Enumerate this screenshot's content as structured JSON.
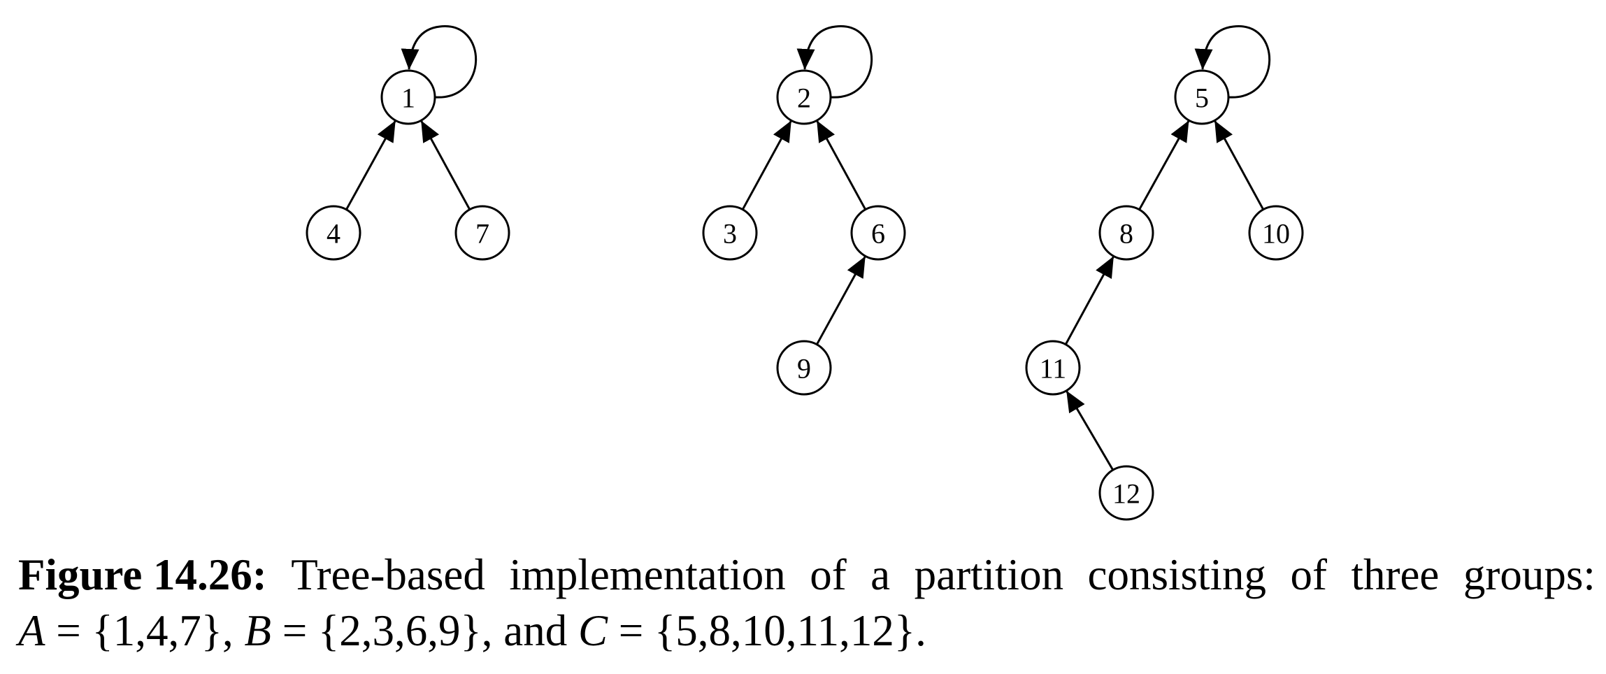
{
  "colors": {
    "stroke": "#000000",
    "text": "#000000",
    "background": "#ffffff"
  },
  "nodes": [
    {
      "id": "n1",
      "label": "1"
    },
    {
      "id": "n4",
      "label": "4"
    },
    {
      "id": "n7",
      "label": "7"
    },
    {
      "id": "n2",
      "label": "2"
    },
    {
      "id": "n3",
      "label": "3"
    },
    {
      "id": "n6",
      "label": "6"
    },
    {
      "id": "n9",
      "label": "9"
    },
    {
      "id": "n5",
      "label": "5"
    },
    {
      "id": "n8",
      "label": "8"
    },
    {
      "id": "n10",
      "label": "10"
    },
    {
      "id": "n11",
      "label": "11"
    },
    {
      "id": "n12",
      "label": "12"
    }
  ],
  "edges": [
    {
      "from": "n4",
      "to": "n1"
    },
    {
      "from": "n7",
      "to": "n1"
    },
    {
      "from": "n3",
      "to": "n2"
    },
    {
      "from": "n6",
      "to": "n2"
    },
    {
      "from": "n9",
      "to": "n6"
    },
    {
      "from": "n8",
      "to": "n5"
    },
    {
      "from": "n10",
      "to": "n5"
    },
    {
      "from": "n11",
      "to": "n8"
    },
    {
      "from": "n12",
      "to": "n11"
    }
  ],
  "self_loops": [
    "n1",
    "n2",
    "n5"
  ],
  "caption": {
    "label": "Figure 14.26:",
    "line1_words": [
      "Tree-based",
      "implementation",
      "of",
      "a",
      "partition",
      "consisting",
      "of",
      "three",
      "groups:"
    ],
    "set_a_name": "A",
    "set_a_members": "{1,4,7}",
    "set_b_name": "B",
    "set_b_members": "{2,3,6,9}",
    "connector": "and",
    "set_c_name": "C",
    "set_c_members": "{5,8,10,11,12}"
  }
}
